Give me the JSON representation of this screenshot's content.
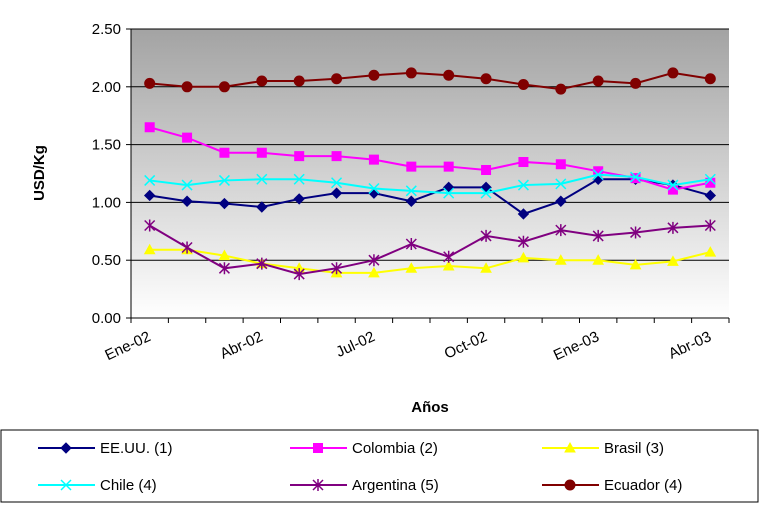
{
  "chart_data": {
    "type": "line",
    "y_label": "USD/Kg",
    "x_label": "Años",
    "categories": [
      "Ene-02",
      null,
      null,
      "Abr-02",
      null,
      null,
      "Jul-02",
      null,
      null,
      "Oct-02",
      null,
      null,
      "Ene-03",
      null,
      null,
      "Abr-03"
    ],
    "ylim": [
      0,
      2.5
    ],
    "yticks": [
      {
        "value": 0,
        "label": "0.00"
      },
      {
        "value": 0.5,
        "label": "0.50"
      },
      {
        "value": 1,
        "label": "1.00"
      },
      {
        "value": 1.5,
        "label": "1.50"
      },
      {
        "value": 2,
        "label": "2.00"
      },
      {
        "value": 2.5,
        "label": "2.50"
      }
    ],
    "grid": true,
    "series": [
      {
        "name": "EE.UU. (1)",
        "color": "#000080",
        "marker": "diamond",
        "values": [
          1.06,
          1.01,
          0.99,
          0.96,
          1.03,
          1.08,
          1.08,
          1.01,
          1.13,
          1.13,
          0.9,
          1.01,
          1.2,
          1.2,
          1.15,
          1.06
        ]
      },
      {
        "name": "Colombia (2)",
        "color": "#ff00ff",
        "marker": "square",
        "values": [
          1.65,
          1.56,
          1.43,
          1.43,
          1.4,
          1.4,
          1.37,
          1.31,
          1.31,
          1.28,
          1.35,
          1.33,
          1.27,
          1.21,
          1.11,
          1.17
        ]
      },
      {
        "name": "Brasil (3)",
        "color": "#ffff00",
        "marker": "triangle",
        "values": [
          0.59,
          0.59,
          0.54,
          0.47,
          0.43,
          0.39,
          0.39,
          0.43,
          0.45,
          0.43,
          0.52,
          0.5,
          0.5,
          0.46,
          0.49,
          0.57
        ]
      },
      {
        "name": "Chile (4)",
        "color": "#00ffff",
        "marker": "x",
        "values": [
          1.19,
          1.15,
          1.19,
          1.2,
          1.2,
          1.17,
          1.12,
          1.1,
          1.08,
          1.08,
          1.15,
          1.16,
          1.24,
          1.22,
          1.15,
          1.2
        ]
      },
      {
        "name": "Argentina (5)",
        "color": "#800080",
        "marker": "star",
        "values": [
          0.8,
          0.61,
          0.43,
          0.47,
          0.38,
          0.43,
          0.5,
          0.64,
          0.53,
          0.71,
          0.66,
          0.76,
          0.71,
          0.74,
          0.78,
          0.8
        ]
      },
      {
        "name": "Ecuador (4)",
        "color": "#800000",
        "marker": "circle",
        "values": [
          2.03,
          2.0,
          2.0,
          2.05,
          2.05,
          2.07,
          2.1,
          2.12,
          2.1,
          2.07,
          2.02,
          1.98,
          2.05,
          2.03,
          2.12,
          2.07
        ]
      }
    ]
  }
}
